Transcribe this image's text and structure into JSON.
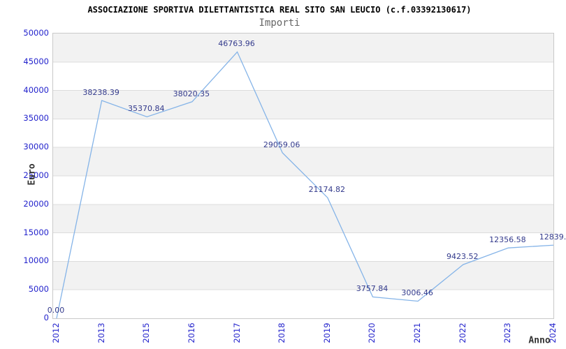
{
  "chart_data": {
    "type": "line",
    "title": "ASSOCIAZIONE SPORTIVA DILETTANTISTICA REAL SITO SAN LEUCIO (c.f.03392130617)",
    "subtitle": "Importi",
    "xlabel": "Anno",
    "ylabel": "Euro",
    "categories": [
      "2012",
      "2013",
      "2015",
      "2016",
      "2017",
      "2018",
      "2019",
      "2020",
      "2021",
      "2022",
      "2023",
      "2024"
    ],
    "values": [
      0,
      38238.39,
      35370.84,
      38020.35,
      46763.96,
      29059.06,
      21174.82,
      3757.84,
      3006.46,
      9423.52,
      12356.58,
      12839
    ],
    "point_labels": [
      "0.00",
      "38238.39",
      "35370.84",
      "38020.35",
      "46763.96",
      "29059.06",
      "21174.82",
      "3757.84",
      "3006.46",
      "9423.52",
      "12356.58",
      "12839."
    ],
    "ylim": [
      0,
      50000
    ],
    "yticks": [
      0,
      5000,
      10000,
      15000,
      20000,
      25000,
      30000,
      35000,
      40000,
      45000,
      50000
    ],
    "grid": "horizontal-bands",
    "legend_position": "none",
    "colors": {
      "line": "#85b4e8",
      "band": "#f2f2f2",
      "band_alt": "#ffffff",
      "gridline": "#dcdcdc",
      "plot_border": "#c9c9c9",
      "tick_label": "#2222cc",
      "point_label": "#333a8c",
      "title": "#000000",
      "subtitle": "#666666",
      "axis_label": "#333333"
    }
  }
}
